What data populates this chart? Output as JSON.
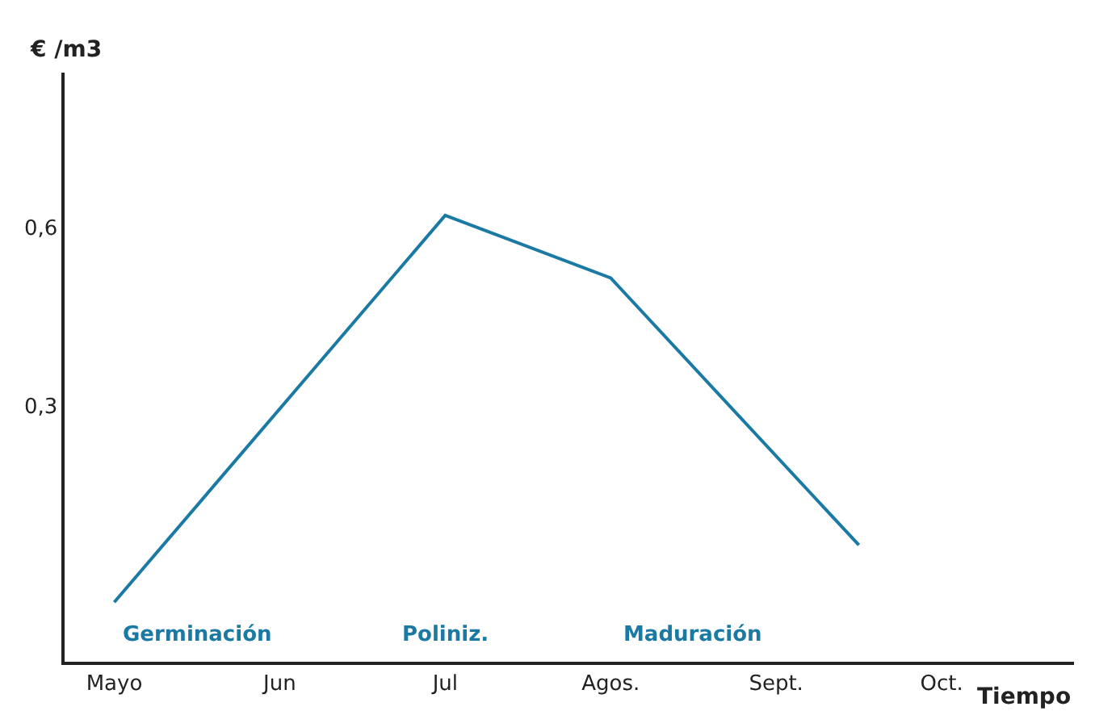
{
  "chart_data": {
    "type": "line",
    "ylabel": "€ /m3",
    "xlabel": "Tiempo",
    "categories": [
      "Mayo",
      null,
      "Jun",
      null,
      "Jul",
      null,
      "Agos.",
      null,
      "Sept.",
      null,
      "Oct."
    ],
    "series": [
      {
        "color": "#1b7aa3",
        "values": [
          -0.03,
          null,
          null,
          null,
          0.62,
          null,
          0.515,
          null,
          null,
          0.066,
          null
        ]
      }
    ],
    "ylim": [
      -0.13,
      0.86
    ],
    "yticks": [
      {
        "value": 0.3,
        "label": "0,3"
      },
      {
        "value": 0.6,
        "label": "0,6"
      }
    ],
    "annotations": [
      "Germinación",
      "Poliniz.",
      "Maduración"
    ],
    "legend": false,
    "marker": "none",
    "line_style": "solid"
  }
}
